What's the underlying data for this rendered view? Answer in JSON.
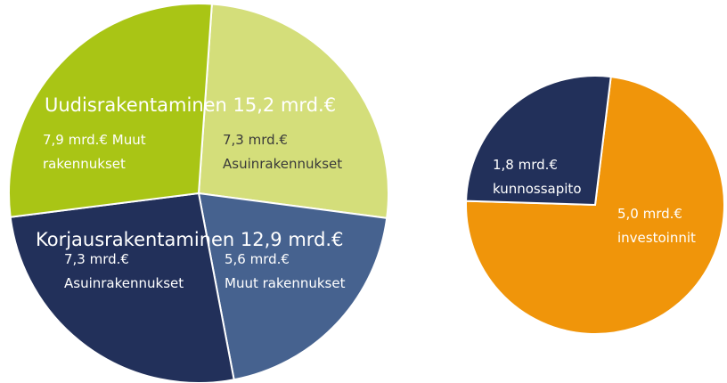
{
  "chart_data": [
    {
      "type": "pie",
      "categories": [
        "Asuinrakennukset",
        "Muut rakennukset",
        "Asuinrakennukset",
        "Muut rakennukset"
      ],
      "values": [
        7.3,
        5.6,
        7.3,
        7.9
      ],
      "value_labels": [
        "7,3 mrd.€",
        "5,6 mrd.€",
        "7,3 mrd.€",
        "7,9 mrd.€"
      ],
      "colors": [
        "#d4de7a",
        "#46628f",
        "#22305a",
        "#a9c515"
      ],
      "annotations": [
        "Uudisrakentaminen 15,2 mrd.€",
        "Korjausrakentaminen 12,9 mrd.€"
      ]
    },
    {
      "type": "pie",
      "categories": [
        "investoinnit",
        "kunnossapito"
      ],
      "values": [
        5.0,
        1.8
      ],
      "value_labels": [
        "5,0 mrd.€",
        "1,8 mrd.€"
      ],
      "colors": [
        "#f0950a",
        "#22305a"
      ]
    }
  ]
}
